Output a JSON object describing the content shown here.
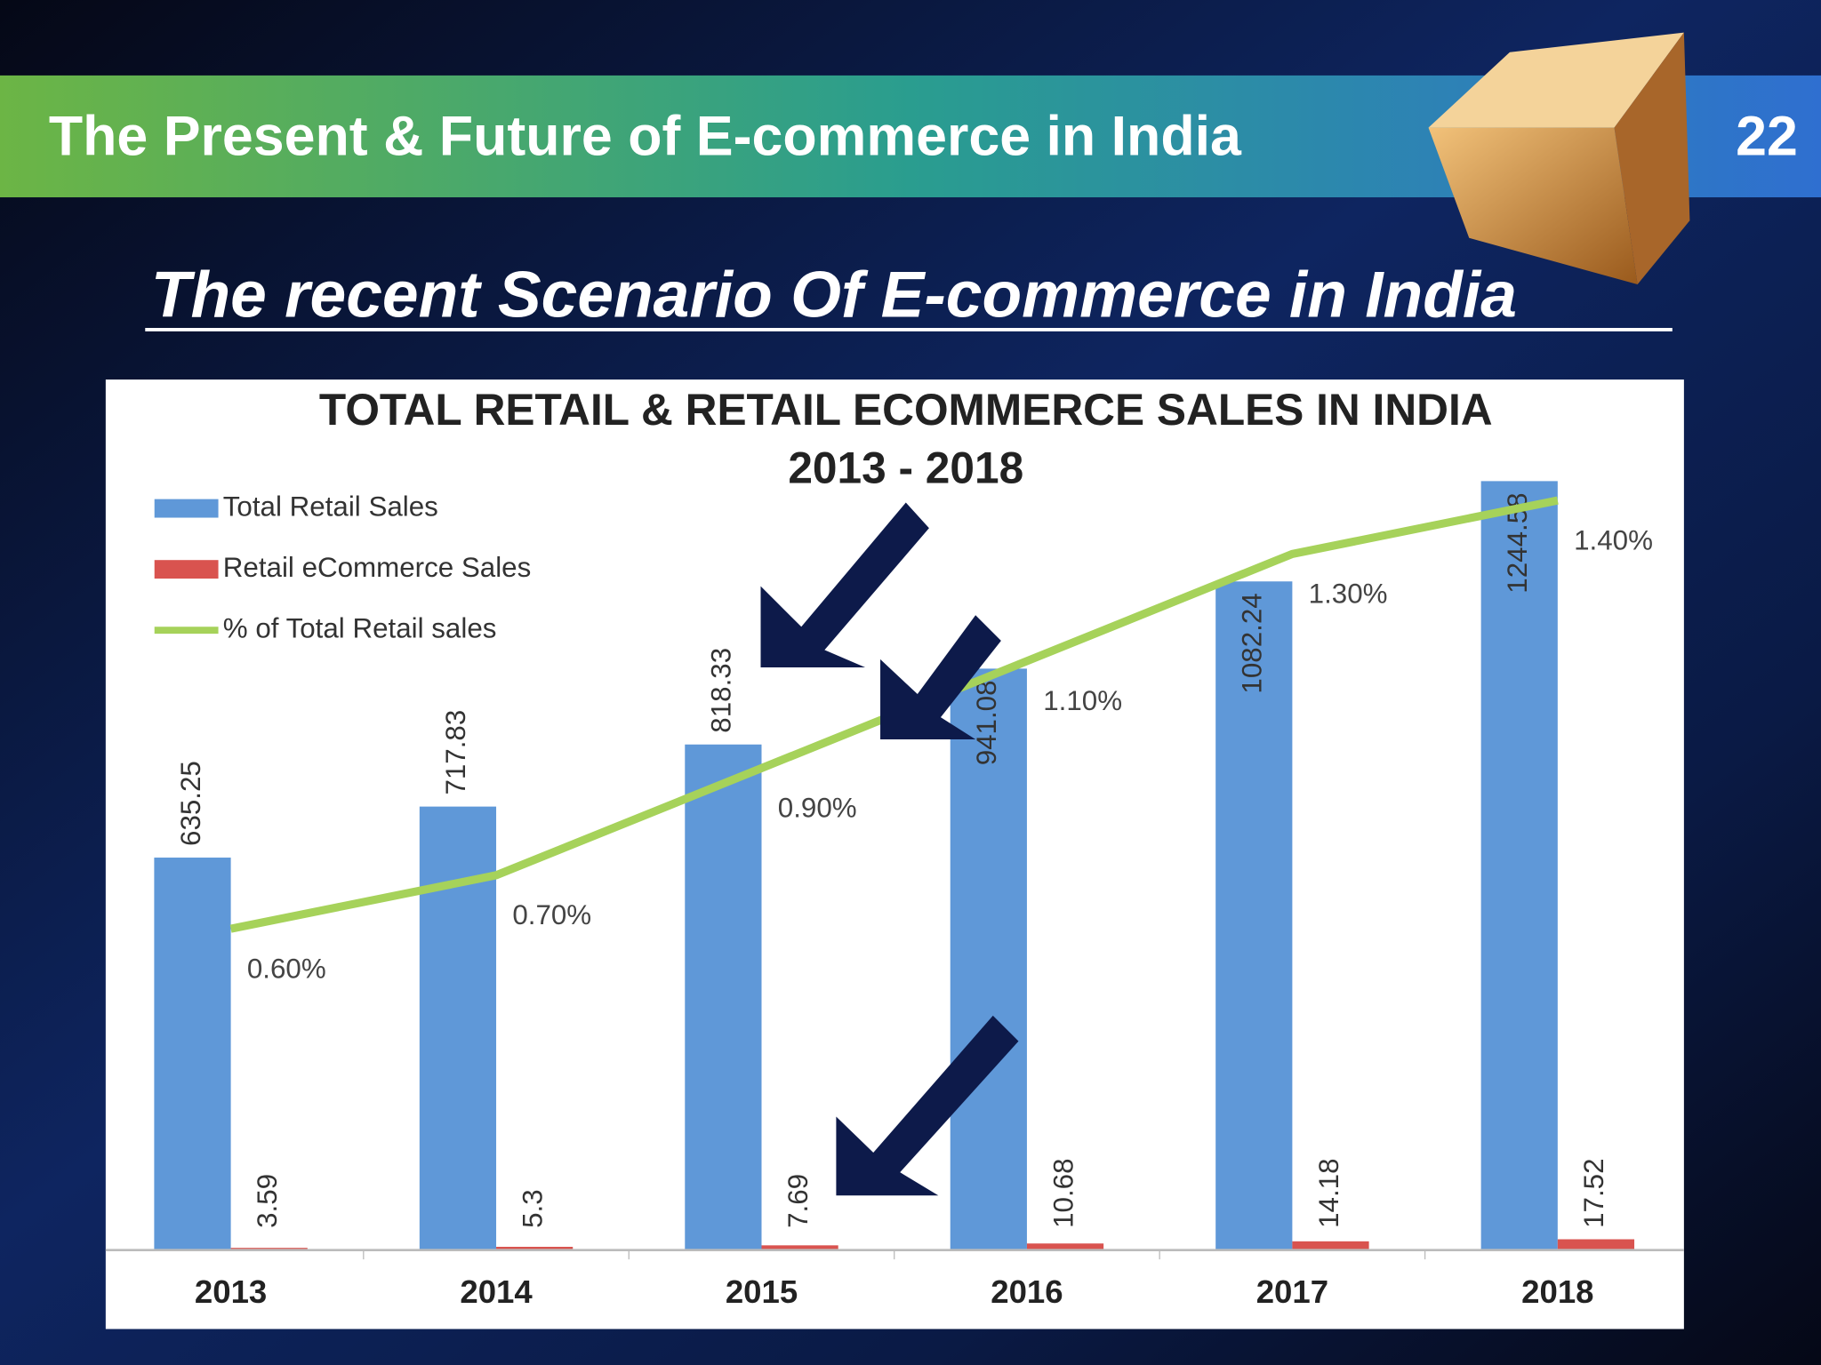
{
  "header": {
    "title": "The Present & Future of E-commerce in India",
    "page_number": "22"
  },
  "heading": "The recent Scenario Of E-commerce in India",
  "chart_data": {
    "type": "bar",
    "title": "TOTAL RETAIL & RETAIL ECOMMERCE SALES IN INDIA",
    "subtitle": "2013 - 2018",
    "categories": [
      "2013",
      "2014",
      "2015",
      "2016",
      "2017",
      "2018"
    ],
    "ylim": [
      0,
      1300
    ],
    "y2lim": [
      0,
      1.5
    ],
    "legend": "top-left",
    "series": [
      {
        "name": "Total Retail Sales",
        "color": "#5f98d8",
        "values": [
          635.25,
          717.83,
          818.33,
          941.08,
          1082.24,
          1244.58
        ]
      },
      {
        "name": "Retail eCommerce Sales",
        "color": "#d9534f",
        "values": [
          3.59,
          5.3,
          7.69,
          10.68,
          14.18,
          17.52
        ]
      },
      {
        "name": "% of Total Retail sales",
        "type": "line",
        "axis": "y2",
        "color": "#a6d25a",
        "values": [
          0.6,
          0.7,
          0.9,
          1.1,
          1.3,
          1.4
        ],
        "value_labels": [
          "0.60%",
          "0.70%",
          "0.90%",
          "1.10%",
          "1.30%",
          "1.40%"
        ]
      }
    ]
  }
}
